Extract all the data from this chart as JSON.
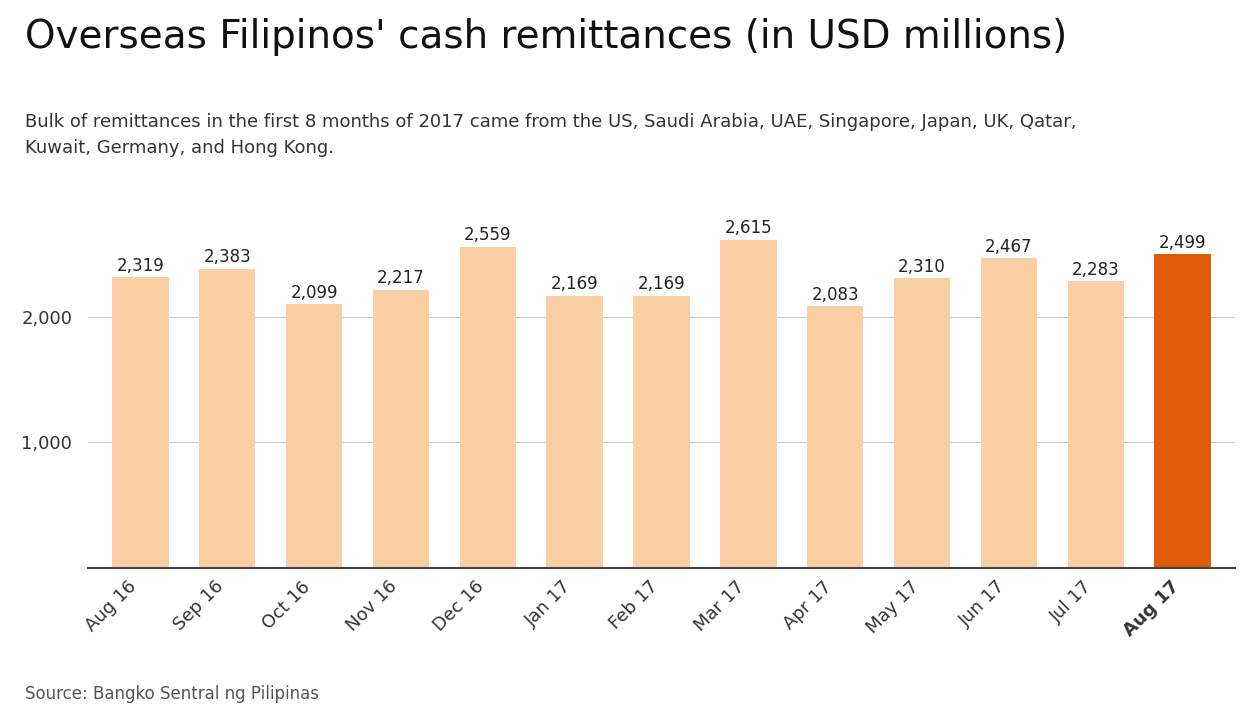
{
  "title": "Overseas Filipinos' cash remittances (in USD millions)",
  "subtitle": "Bulk of remittances in the first 8 months of 2017 came from the US, Saudi Arabia, UAE, Singapore, Japan, UK, Qatar,\nKuwait, Germany, and Hong Kong.",
  "source": "Source: Bangko Sentral ng Pilipinas",
  "categories": [
    "Aug 16",
    "Sep 16",
    "Oct 16",
    "Nov 16",
    "Dec 16",
    "Jan 17",
    "Feb 17",
    "Mar 17",
    "Apr 17",
    "May 17",
    "Jun 17",
    "Jul 17",
    "Aug 17"
  ],
  "values": [
    2319,
    2383,
    2099,
    2217,
    2559,
    2169,
    2169,
    2615,
    2083,
    2310,
    2467,
    2283,
    2499
  ],
  "bar_colors": [
    "#FBCFA4",
    "#FBCFA4",
    "#FBCFA4",
    "#FBCFA4",
    "#FBCFA4",
    "#FBCFA4",
    "#FBCFA4",
    "#FBCFA4",
    "#FBCFA4",
    "#FBCFA4",
    "#FBCFA4",
    "#FBCFA4",
    "#E05C0A"
  ],
  "highlight_index": 12,
  "ylim": [
    0,
    2900
  ],
  "yticks": [
    1000,
    2000
  ],
  "background_color": "#ffffff",
  "title_fontsize": 28,
  "subtitle_fontsize": 13,
  "label_fontsize": 12,
  "tick_fontsize": 13,
  "source_fontsize": 12
}
